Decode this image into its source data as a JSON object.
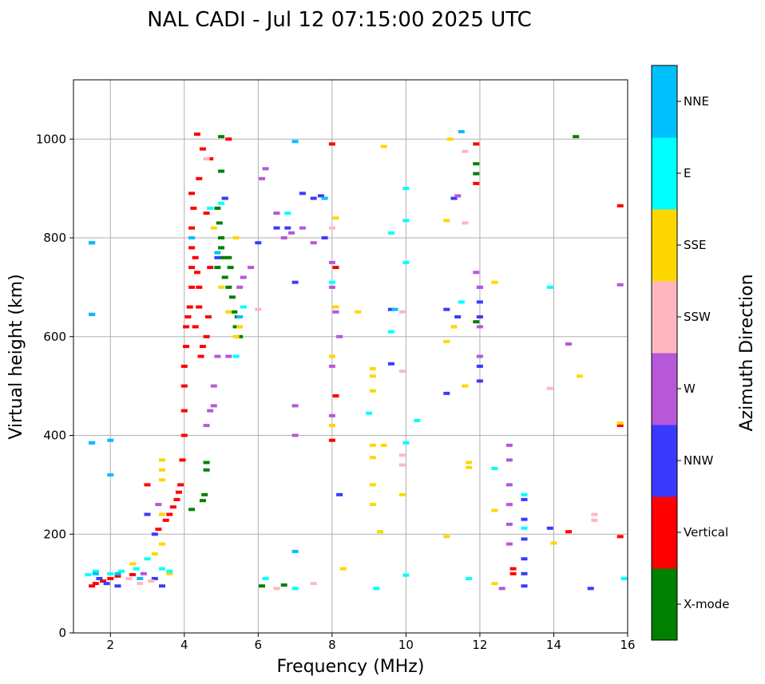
{
  "chart_data": {
    "type": "scatter",
    "title": "NAL CADI - Jul 12 07:15:00 2025 UTC",
    "xlabel": "Frequency (MHz)",
    "ylabel": "Virtual height (km)",
    "xlim": [
      1,
      16
    ],
    "ylim": [
      0,
      1120
    ],
    "xticks": [
      2,
      4,
      6,
      8,
      10,
      12,
      14,
      16
    ],
    "yticks": [
      0,
      200,
      400,
      600,
      800,
      1000
    ],
    "grid": true,
    "colorbar": {
      "label": "Azimuth Direction",
      "categories": [
        {
          "name": "X-mode",
          "color": "#008000"
        },
        {
          "name": "Vertical",
          "color": "#ff0000"
        },
        {
          "name": "NNW",
          "color": "#3a3aff"
        },
        {
          "name": "W",
          "color": "#b658d8"
        },
        {
          "name": "SSW",
          "color": "#ffb6c1"
        },
        {
          "name": "SSE",
          "color": "#ffd700"
        },
        {
          "name": "E",
          "color": "#00ffff"
        },
        {
          "name": "NNE",
          "color": "#00bfff"
        }
      ]
    },
    "series": [
      {
        "name": "X-mode",
        "points": [
          [
            4.6,
            345
          ],
          [
            4.6,
            330
          ],
          [
            4.55,
            280
          ],
          [
            4.5,
            268
          ],
          [
            4.2,
            250
          ],
          [
            4.9,
            860
          ],
          [
            4.95,
            830
          ],
          [
            5.0,
            800
          ],
          [
            5.0,
            780
          ],
          [
            5.05,
            760
          ],
          [
            4.9,
            740
          ],
          [
            5.1,
            720
          ],
          [
            5.1,
            880
          ],
          [
            5.2,
            700
          ],
          [
            5.3,
            680
          ],
          [
            5.35,
            650
          ],
          [
            5.4,
            620
          ],
          [
            5.5,
            600
          ],
          [
            5.0,
            1005
          ],
          [
            5.0,
            935
          ],
          [
            6.7,
            97
          ],
          [
            6.1,
            95
          ],
          [
            11.9,
            950
          ],
          [
            11.9,
            930
          ],
          [
            11.9,
            630
          ],
          [
            14.6,
            1005
          ],
          [
            5.2,
            760
          ],
          [
            5.25,
            740
          ],
          [
            5.45,
            640
          ]
        ]
      },
      {
        "name": "Vertical",
        "points": [
          [
            1.5,
            95
          ],
          [
            1.6,
            100
          ],
          [
            1.8,
            105
          ],
          [
            2.0,
            110
          ],
          [
            2.2,
            115
          ],
          [
            2.6,
            118
          ],
          [
            3.0,
            300
          ],
          [
            3.3,
            210
          ],
          [
            3.5,
            228
          ],
          [
            3.6,
            240
          ],
          [
            3.7,
            255
          ],
          [
            3.8,
            270
          ],
          [
            3.85,
            285
          ],
          [
            3.9,
            300
          ],
          [
            3.95,
            350
          ],
          [
            4.0,
            400
          ],
          [
            4.0,
            450
          ],
          [
            4.0,
            500
          ],
          [
            4.0,
            540
          ],
          [
            4.05,
            580
          ],
          [
            4.05,
            620
          ],
          [
            4.1,
            640
          ],
          [
            4.15,
            660
          ],
          [
            4.2,
            700
          ],
          [
            4.2,
            740
          ],
          [
            4.2,
            780
          ],
          [
            4.2,
            820
          ],
          [
            4.25,
            860
          ],
          [
            4.2,
            890
          ],
          [
            4.3,
            760
          ],
          [
            4.35,
            730
          ],
          [
            4.4,
            700
          ],
          [
            4.4,
            660
          ],
          [
            4.3,
            620
          ],
          [
            4.45,
            560
          ],
          [
            4.5,
            580
          ],
          [
            4.6,
            600
          ],
          [
            4.65,
            640
          ],
          [
            4.7,
            740
          ],
          [
            4.6,
            850
          ],
          [
            4.4,
            920
          ],
          [
            4.35,
            1010
          ],
          [
            4.5,
            980
          ],
          [
            4.7,
            960
          ],
          [
            5.2,
            1000
          ],
          [
            8.0,
            990
          ],
          [
            8.1,
            740
          ],
          [
            8.1,
            480
          ],
          [
            8.0,
            390
          ],
          [
            11.9,
            990
          ],
          [
            11.9,
            910
          ],
          [
            12.9,
            130
          ],
          [
            12.9,
            120
          ],
          [
            14.4,
            205
          ],
          [
            15.8,
            865
          ],
          [
            15.8,
            420
          ],
          [
            15.8,
            195
          ]
        ]
      },
      {
        "name": "NNW",
        "points": [
          [
            1.5,
            790
          ],
          [
            1.5,
            645
          ],
          [
            1.5,
            385
          ],
          [
            1.7,
            110
          ],
          [
            1.9,
            100
          ],
          [
            2.2,
            95
          ],
          [
            3.0,
            240
          ],
          [
            3.2,
            200
          ],
          [
            3.4,
            95
          ],
          [
            3.2,
            110
          ],
          [
            4.9,
            760
          ],
          [
            5.1,
            880
          ],
          [
            6.0,
            790
          ],
          [
            6.5,
            820
          ],
          [
            6.8,
            820
          ],
          [
            7.0,
            710
          ],
          [
            7.2,
            890
          ],
          [
            7.5,
            880
          ],
          [
            7.7,
            885
          ],
          [
            7.8,
            800
          ],
          [
            8.2,
            280
          ],
          [
            9.6,
            545
          ],
          [
            9.6,
            655
          ],
          [
            11.1,
            485
          ],
          [
            11.1,
            655
          ],
          [
            11.3,
            880
          ],
          [
            11.4,
            640
          ],
          [
            12.0,
            700
          ],
          [
            12.0,
            670
          ],
          [
            12.0,
            640
          ],
          [
            12.0,
            540
          ],
          [
            12.0,
            510
          ],
          [
            13.2,
            270
          ],
          [
            13.2,
            230
          ],
          [
            13.2,
            190
          ],
          [
            13.2,
            150
          ],
          [
            13.2,
            120
          ],
          [
            13.2,
            95
          ],
          [
            13.9,
            212
          ],
          [
            15.0,
            90
          ]
        ]
      },
      {
        "name": "W",
        "points": [
          [
            2.9,
            120
          ],
          [
            3.3,
            260
          ],
          [
            4.6,
            420
          ],
          [
            4.7,
            450
          ],
          [
            4.8,
            460
          ],
          [
            4.8,
            500
          ],
          [
            4.9,
            560
          ],
          [
            5.2,
            560
          ],
          [
            5.5,
            700
          ],
          [
            5.6,
            720
          ],
          [
            5.8,
            740
          ],
          [
            6.1,
            920
          ],
          [
            6.2,
            940
          ],
          [
            6.5,
            850
          ],
          [
            6.7,
            800
          ],
          [
            6.9,
            810
          ],
          [
            7.0,
            460
          ],
          [
            7.0,
            400
          ],
          [
            7.2,
            820
          ],
          [
            7.5,
            790
          ],
          [
            8.0,
            750
          ],
          [
            8.0,
            700
          ],
          [
            8.1,
            650
          ],
          [
            8.0,
            540
          ],
          [
            8.0,
            440
          ],
          [
            8.2,
            600
          ],
          [
            11.3,
            620
          ],
          [
            11.4,
            885
          ],
          [
            11.9,
            730
          ],
          [
            12.0,
            700
          ],
          [
            12.0,
            620
          ],
          [
            12.0,
            560
          ],
          [
            12.8,
            380
          ],
          [
            12.8,
            350
          ],
          [
            12.8,
            300
          ],
          [
            12.8,
            260
          ],
          [
            12.8,
            220
          ],
          [
            12.8,
            180
          ],
          [
            12.6,
            90
          ],
          [
            14.4,
            585
          ],
          [
            15.8,
            705
          ]
        ]
      },
      {
        "name": "SSW",
        "points": [
          [
            2.5,
            110
          ],
          [
            2.8,
            100
          ],
          [
            3.1,
            105
          ],
          [
            4.6,
            960
          ],
          [
            6.0,
            655
          ],
          [
            6.5,
            90
          ],
          [
            7.5,
            100
          ],
          [
            8.0,
            820
          ],
          [
            9.9,
            650
          ],
          [
            9.9,
            360
          ],
          [
            9.9,
            340
          ],
          [
            9.9,
            530
          ],
          [
            11.6,
            830
          ],
          [
            11.6,
            975
          ],
          [
            13.9,
            495
          ],
          [
            15.1,
            240
          ],
          [
            15.1,
            228
          ]
        ]
      },
      {
        "name": "SSE",
        "points": [
          [
            3.4,
            350
          ],
          [
            3.4,
            330
          ],
          [
            3.4,
            310
          ],
          [
            3.4,
            240
          ],
          [
            3.4,
            180
          ],
          [
            3.2,
            160
          ],
          [
            2.6,
            140
          ],
          [
            3.6,
            120
          ],
          [
            4.8,
            820
          ],
          [
            5.0,
            700
          ],
          [
            5.2,
            650
          ],
          [
            5.4,
            600
          ],
          [
            5.5,
            620
          ],
          [
            5.4,
            800
          ],
          [
            8.0,
            420
          ],
          [
            8.0,
            560
          ],
          [
            8.1,
            840
          ],
          [
            8.1,
            660
          ],
          [
            8.3,
            130
          ],
          [
            8.7,
            650
          ],
          [
            9.1,
            535
          ],
          [
            9.1,
            520
          ],
          [
            9.1,
            490
          ],
          [
            9.1,
            380
          ],
          [
            9.1,
            355
          ],
          [
            9.1,
            300
          ],
          [
            9.1,
            260
          ],
          [
            9.4,
            985
          ],
          [
            9.4,
            380
          ],
          [
            9.3,
            205
          ],
          [
            9.9,
            280
          ],
          [
            11.1,
            195
          ],
          [
            11.1,
            835
          ],
          [
            11.1,
            590
          ],
          [
            11.2,
            1000
          ],
          [
            11.3,
            620
          ],
          [
            11.6,
            500
          ],
          [
            11.7,
            345
          ],
          [
            11.7,
            335
          ],
          [
            12.4,
            710
          ],
          [
            12.4,
            248
          ],
          [
            12.4,
            100
          ],
          [
            14.0,
            182
          ],
          [
            14.7,
            520
          ],
          [
            15.8,
            425
          ]
        ]
      },
      {
        "name": "E",
        "points": [
          [
            1.4,
            118
          ],
          [
            1.6,
            125
          ],
          [
            2.0,
            120
          ],
          [
            2.3,
            125
          ],
          [
            2.7,
            130
          ],
          [
            3.0,
            150
          ],
          [
            3.4,
            130
          ],
          [
            3.6,
            125
          ],
          [
            4.7,
            860
          ],
          [
            5.0,
            870
          ],
          [
            5.4,
            560
          ],
          [
            5.6,
            660
          ],
          [
            6.2,
            110
          ],
          [
            6.8,
            850
          ],
          [
            7.0,
            90
          ],
          [
            8.0,
            710
          ],
          [
            9.0,
            445
          ],
          [
            9.2,
            90
          ],
          [
            9.6,
            810
          ],
          [
            9.6,
            610
          ],
          [
            10.0,
            900
          ],
          [
            10.0,
            835
          ],
          [
            10.0,
            750
          ],
          [
            10.0,
            385
          ],
          [
            10.0,
            117
          ],
          [
            10.3,
            430
          ],
          [
            11.5,
            670
          ],
          [
            11.7,
            110
          ],
          [
            12.4,
            333
          ],
          [
            13.2,
            280
          ],
          [
            13.2,
            212
          ],
          [
            13.9,
            700
          ],
          [
            15.9,
            110
          ]
        ]
      },
      {
        "name": "NNE",
        "points": [
          [
            1.5,
            790
          ],
          [
            1.5,
            645
          ],
          [
            1.5,
            385
          ],
          [
            1.6,
            120
          ],
          [
            2.0,
            390
          ],
          [
            2.0,
            320
          ],
          [
            2.2,
            120
          ],
          [
            2.8,
            110
          ],
          [
            4.2,
            800
          ],
          [
            4.9,
            770
          ],
          [
            5.5,
            640
          ],
          [
            7.0,
            995
          ],
          [
            7.0,
            165
          ],
          [
            7.8,
            880
          ],
          [
            9.7,
            655
          ],
          [
            11.5,
            1015
          ]
        ]
      }
    ]
  }
}
